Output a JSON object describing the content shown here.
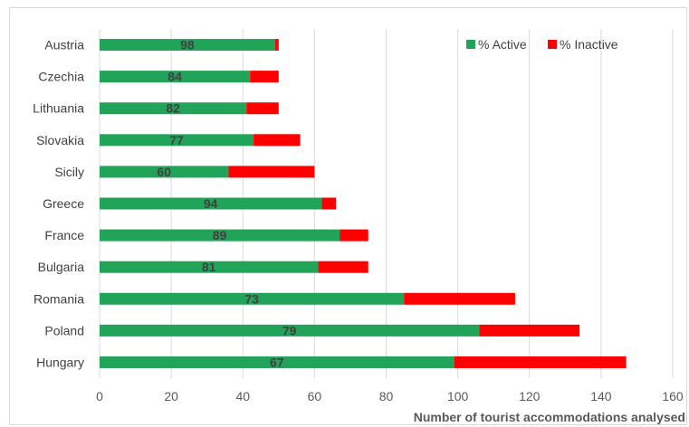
{
  "chart_data": {
    "type": "bar",
    "orientation": "horizontal",
    "stacked": true,
    "categories": [
      "Austria",
      "Czechia",
      "Lithuania",
      "Slovakia",
      "Sicily",
      "Greece",
      "France",
      "Bulgaria",
      "Romania",
      "Poland",
      "Hungary"
    ],
    "series": [
      {
        "name": "% Active",
        "color": "#22a35a",
        "values": [
          49,
          42,
          41,
          43,
          36,
          62,
          67,
          61,
          85,
          106,
          99
        ]
      },
      {
        "name": "% Inactive",
        "color": "#ff0000",
        "values": [
          1,
          8,
          9,
          13,
          24,
          4,
          8,
          14,
          31,
          28,
          48
        ]
      }
    ],
    "data_labels": [
      98,
      84,
      82,
      77,
      60,
      94,
      89,
      81,
      73,
      79,
      67
    ],
    "xlabel": "Number of tourist accommodations analysed",
    "xlim": [
      0,
      160
    ],
    "xticks": [
      0,
      20,
      40,
      60,
      80,
      100,
      120,
      140,
      160
    ],
    "grid": true,
    "legend_position": "top-right"
  }
}
